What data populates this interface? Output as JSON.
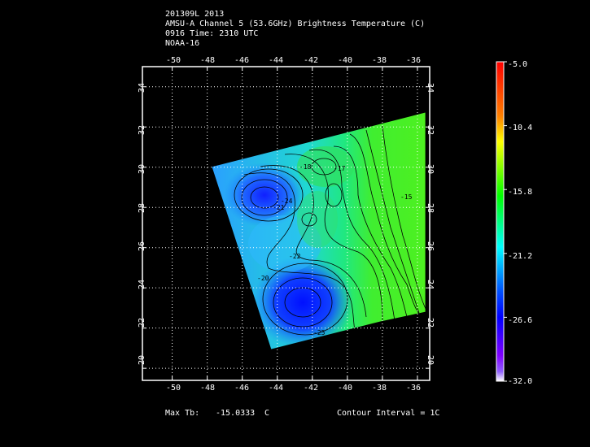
{
  "header": {
    "line1": "201309L 2013",
    "line2": "AMSU-A Channel 5 (53.6GHz) Brightness Temperature (C)",
    "line3": "0916 Time: 2310 UTC",
    "line4": "NOAA-16"
  },
  "map": {
    "lon_ticks": [
      "-50",
      "-48",
      "-46",
      "-44",
      "-42",
      "-40",
      "-38",
      "-36"
    ],
    "lat_ticks": [
      "20",
      "22",
      "24",
      "26",
      "28",
      "30",
      "32",
      "34"
    ],
    "lon_range": [
      -51.7,
      -35.3
    ],
    "lat_range": [
      19.4,
      35.0
    ],
    "grid": true
  },
  "colorbar": {
    "labels": [
      "-5.0",
      "-10.4",
      "-15.8",
      "-21.2",
      "-26.6",
      "-32.0"
    ],
    "colors": [
      "#ff0000",
      "#ffff00",
      "#00ff00",
      "#00ffff",
      "#0000ff",
      "#7f00ff",
      "#ffffff"
    ]
  },
  "contour_labels": [
    "-21",
    "-24",
    "-22",
    "-20",
    "-17",
    "-15",
    "-25",
    "-18"
  ],
  "footer": {
    "max_tb_label": "Max Tb:",
    "max_tb_value": "-15.0333",
    "max_tb_unit": "C",
    "contour_interval": "Contour Interval = 1C"
  }
}
